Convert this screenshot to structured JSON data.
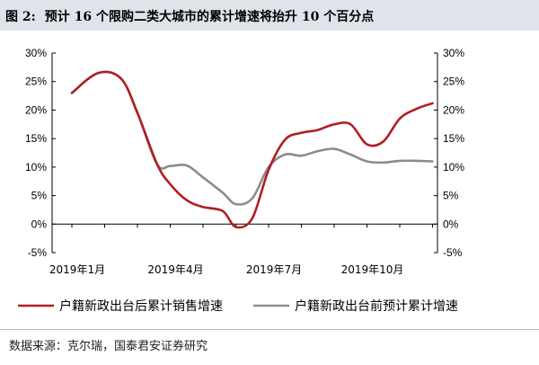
{
  "figure": {
    "number": "图 2:",
    "title": "预计 16 个限购二类大城市的累计增速将抬升 10 个百分点",
    "source": "数据来源：克尔瑞，国泰君安证券研究"
  },
  "chart_data": {
    "type": "line",
    "title": "",
    "xlabel": "",
    "ylabel": "",
    "x_tick_labels": [
      "2019年1月",
      "2019年4月",
      "2019年7月",
      "2019年10月"
    ],
    "x_tick_index": [
      0,
      3,
      6,
      9
    ],
    "y_ticks": [
      "-5%",
      "0%",
      "5%",
      "10%",
      "15%",
      "20%",
      "25%",
      "30%"
    ],
    "ylim": [
      -5,
      30
    ],
    "y_unit": "%",
    "legend_position": "bottom",
    "grid": false,
    "series": [
      {
        "name": "户籍新政出台后累计销售增速",
        "color": "#b01e23",
        "x": [
          0,
          0.8,
          1.5,
          2,
          2.6,
          3,
          3.5,
          4,
          4.6,
          5,
          5.5,
          6,
          6.5,
          7,
          7.5,
          8,
          8.5,
          9,
          9.5,
          10,
          10.5,
          11
        ],
        "values": [
          23,
          26.5,
          25.5,
          19.5,
          10.5,
          7,
          4.2,
          3,
          2.3,
          -0.5,
          1,
          9.5,
          14.8,
          16,
          16.5,
          17.5,
          17.5,
          14,
          14.5,
          18.5,
          20.2,
          21.2
        ]
      },
      {
        "name": "户籍新政出台前预计累计增速",
        "color": "#8c8c8c",
        "x": [
          0,
          0.8,
          1.5,
          2,
          2.6,
          3,
          3.5,
          4,
          4.6,
          5,
          5.5,
          6,
          6.5,
          7,
          7.5,
          8,
          8.5,
          9,
          9.5,
          10,
          10.5,
          11
        ],
        "values": [
          23,
          26.5,
          25.5,
          19.5,
          10.5,
          10.2,
          10.3,
          8.2,
          5.5,
          3.5,
          4.5,
          10,
          12.2,
          12,
          12.8,
          13.2,
          12.2,
          11,
          10.8,
          11.1,
          11.1,
          11
        ]
      }
    ]
  }
}
